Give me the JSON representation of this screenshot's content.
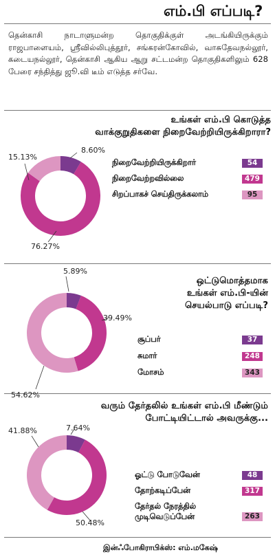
{
  "header": {
    "title": "எம்.பி எப்படி?"
  },
  "intro": "தென்காசி நாடாளுமன்ற தொகுதிக்குள் அடங்கியிருக்கும் ராஜபாளையம், ஸ்ரீவில்லிபுத்தூர், சங்கரன்கோவில், வாசுதேவநல்லூர், கடையநல்லூர், தென்காசி ஆகிய ஆறு சட்டமன்ற தொகுதிகளிலும் 628 பேரை சந்தித்து ஜூ.வி டீம் எடுத்த சர்வே.",
  "colors": {
    "dark": "#7b3a8f",
    "medium": "#c1388f",
    "light": "#dd96c1",
    "track": "#ffffff"
  },
  "chart_data": [
    {
      "type": "pie",
      "question_line1": "உங்கள் எம்.பி கொடுத்த",
      "question_line2": "வாக்குறுதிகளை நிறைவேற்றியிருக்கிறாரா?",
      "categories": [
        "நிறைவேற்றியிருக்கிறார்",
        "நிறைவேற்றவில்லை",
        "சிறப்பாகச் செய்திருக்கலாம்"
      ],
      "values": [
        54,
        479,
        95
      ],
      "percent_labels": [
        "8.60%",
        "76.27%",
        "15.13%"
      ]
    },
    {
      "type": "pie",
      "question_line1": "ஒட்டுமொத்தமாக",
      "question_line2": "உங்கள் எம்.பி-யின்",
      "question_line3": "செயல்பாடு எப்படி?",
      "categories": [
        "சூப்பர்",
        "சுமார்",
        "மோசம்"
      ],
      "values": [
        37,
        248,
        343
      ],
      "percent_labels": [
        "5.89%",
        "39.49%",
        "54.62%"
      ]
    },
    {
      "type": "pie",
      "question_line1": "வரும் தேர்தலில் உங்கள் எம்.பி மீண்டும்",
      "question_line2": "போட்டியிட்டால் அவருக்கு...",
      "categories": [
        "ஓட்டு போடுவேன்",
        "தோற்கடிப்பேன்",
        "தேர்தல் நேரத்தில் முடிவெடுப்பேன்"
      ],
      "category_line1": "தேர்தல் நேரத்தில்",
      "category_line2": "முடிவெடுப்பேன்",
      "values": [
        48,
        317,
        263
      ],
      "percent_labels": [
        "7.64%",
        "50.48%",
        "41.88%"
      ]
    }
  ],
  "credit": "இன்ஃபோகிராபிக்ஸ்: எம்.மகேஷ்"
}
